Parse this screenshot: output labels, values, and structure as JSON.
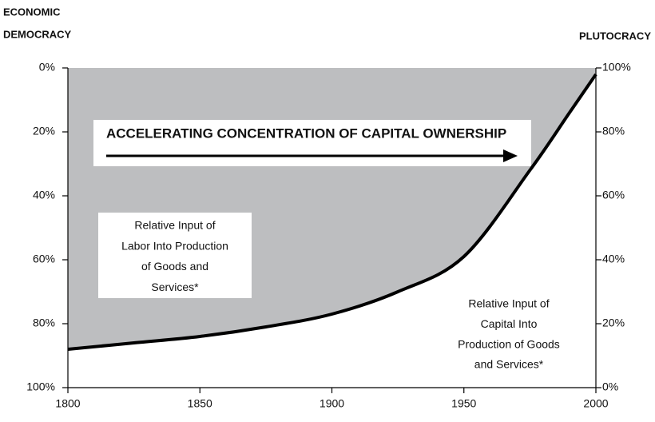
{
  "chart_data": {
    "type": "area",
    "x": [
      1800,
      1825,
      1850,
      1875,
      1900,
      1925,
      1950,
      1975,
      1990,
      2000
    ],
    "series": [
      {
        "values": [
          12,
          14,
          16,
          19,
          23,
          30,
          41,
          68,
          86,
          98
        ],
        "axis": "y2",
        "color": "#000000",
        "fill": "#bdbec0"
      }
    ],
    "xlim": [
      1800,
      2000
    ],
    "xticks": [
      1800,
      1850,
      1900,
      1950,
      2000
    ],
    "ylim": [
      100,
      0
    ],
    "yticks": [
      {
        "value": 0,
        "label": "0%"
      },
      {
        "value": 20,
        "label": "20%"
      },
      {
        "value": 40,
        "label": "40%"
      },
      {
        "value": 60,
        "label": "60%"
      },
      {
        "value": 80,
        "label": "80%"
      },
      {
        "value": 100,
        "label": "100%"
      }
    ],
    "y2lim": [
      0,
      100
    ],
    "y2ticks": [
      {
        "value": 0,
        "label": "0%"
      },
      {
        "value": 20,
        "label": "20%"
      },
      {
        "value": 40,
        "label": "40%"
      },
      {
        "value": 60,
        "label": "60%"
      },
      {
        "value": 80,
        "label": "80%"
      },
      {
        "value": 100,
        "label": "100%"
      }
    ],
    "y_label": [
      "ECONOMIC",
      "DEMOCRACY"
    ],
    "y2_label": "PLUTOCRACY",
    "annotations": [
      {
        "lines": [
          "ACCELERATING CONCENTRATION OF CAPITAL OWNERSHIP"
        ]
      },
      {
        "lines": [
          "Relative Input of",
          "Labor Into Production",
          "of Goods and",
          "Services*"
        ]
      },
      {
        "lines": [
          "Relative Input of",
          "Capital Into",
          "Production of Goods",
          "and Services*"
        ]
      }
    ]
  }
}
